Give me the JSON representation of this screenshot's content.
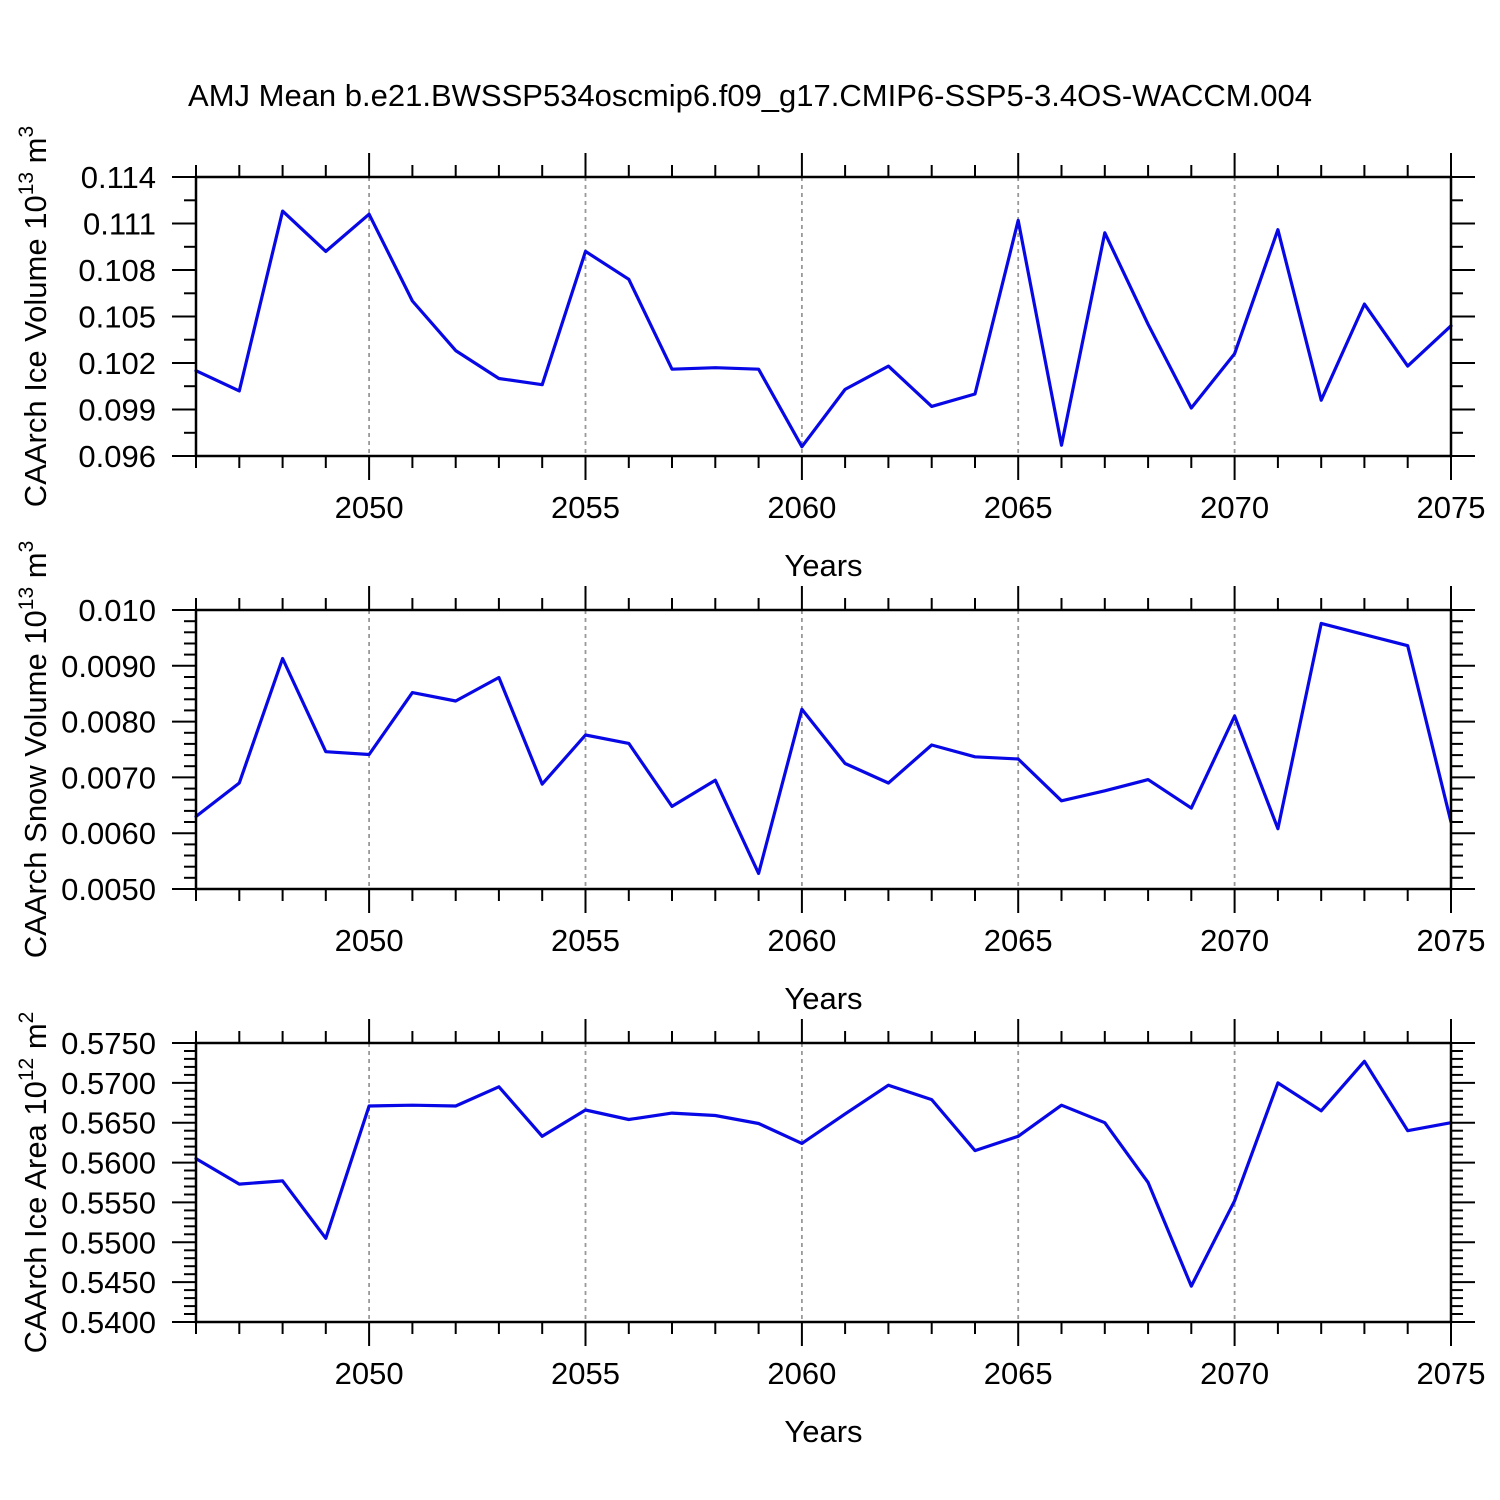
{
  "page": {
    "title": "AMJ Mean b.e21.BWSSP534oscmip6.f09_g17.CMIP6-SSP5-3.4OS-WACCM.004",
    "background": "#ffffff"
  },
  "style": {
    "line_color": "#0808e6",
    "frame_color": "#000000",
    "grid_color": "#999999",
    "text_color": "#000000"
  },
  "x_axis": {
    "title": "Years",
    "min": 2046,
    "max": 2075,
    "major_ticks": [
      2050,
      2055,
      2060,
      2065,
      2070,
      2075
    ],
    "minor_step": 1,
    "gridlines": "dashed at major ticks"
  },
  "chart_data": [
    {
      "type": "line",
      "ylabel": "CAArch Ice Volume 10¹³ m³",
      "ylabel_parts": [
        {
          "t": "CAArch Ice Volume 10"
        },
        {
          "t": "13",
          "sup": true
        },
        {
          "t": " m"
        },
        {
          "t": "3",
          "sup": true
        }
      ],
      "xlabel": "Years",
      "ylim": [
        0.096,
        0.114
      ],
      "ytick_values": [
        0.096,
        0.099,
        0.102,
        0.105,
        0.108,
        0.111,
        0.114
      ],
      "ytick_labels": [
        "0.096",
        "0.099",
        "0.102",
        "0.105",
        "0.108",
        "0.111",
        "0.114"
      ],
      "yminor_step": 0.0015,
      "x": [
        2046,
        2047,
        2048,
        2049,
        2050,
        2051,
        2052,
        2053,
        2054,
        2055,
        2056,
        2057,
        2058,
        2059,
        2060,
        2061,
        2062,
        2063,
        2064,
        2065,
        2066,
        2067,
        2068,
        2069,
        2070,
        2071,
        2072,
        2073,
        2074,
        2075
      ],
      "values": [
        0.1015,
        0.1002,
        0.1118,
        0.1092,
        0.1116,
        0.106,
        0.1028,
        0.101,
        0.1006,
        0.1092,
        0.1074,
        0.1016,
        0.1017,
        0.1016,
        0.0966,
        0.1003,
        0.1018,
        0.0992,
        0.1,
        0.1112,
        0.0967,
        0.1104,
        0.1045,
        0.0991,
        0.1026,
        0.1106,
        0.0996,
        0.1058,
        0.1018,
        0.1044
      ]
    },
    {
      "type": "line",
      "ylabel": "CAArch Snow Volume 10¹³ m³",
      "ylabel_parts": [
        {
          "t": "CAArch Snow Volume 10"
        },
        {
          "t": "13",
          "sup": true
        },
        {
          "t": " m"
        },
        {
          "t": "3",
          "sup": true
        }
      ],
      "xlabel": "Years",
      "ylim": [
        0.005,
        0.01
      ],
      "ytick_values": [
        0.005,
        0.006,
        0.007,
        0.008,
        0.009,
        0.01
      ],
      "ytick_labels": [
        "0.0050",
        "0.0060",
        "0.0070",
        "0.0080",
        "0.0090",
        "0.010"
      ],
      "yminor_step": 0.0002,
      "x": [
        2046,
        2047,
        2048,
        2049,
        2050,
        2051,
        2052,
        2053,
        2054,
        2055,
        2056,
        2057,
        2058,
        2059,
        2060,
        2061,
        2062,
        2063,
        2064,
        2065,
        2066,
        2067,
        2068,
        2069,
        2070,
        2071,
        2072,
        2073,
        2074,
        2075
      ],
      "values": [
        0.0063,
        0.0069,
        0.00913,
        0.00746,
        0.00741,
        0.00852,
        0.00837,
        0.00879,
        0.00688,
        0.00776,
        0.00761,
        0.00648,
        0.00695,
        0.00528,
        0.00822,
        0.00725,
        0.0069,
        0.00758,
        0.00737,
        0.00733,
        0.00658,
        0.00676,
        0.00696,
        0.00645,
        0.0081,
        0.00608,
        0.00976,
        0.00956,
        0.00936,
        0.0062
      ]
    },
    {
      "type": "line",
      "ylabel": "CAArch Ice Area 10¹² m²",
      "ylabel_parts": [
        {
          "t": "CAArch Ice Area 10"
        },
        {
          "t": "12",
          "sup": true
        },
        {
          "t": " m"
        },
        {
          "t": "2",
          "sup": true
        }
      ],
      "xlabel": "Years",
      "ylim": [
        0.54,
        0.575
      ],
      "ytick_values": [
        0.54,
        0.545,
        0.55,
        0.555,
        0.56,
        0.565,
        0.57,
        0.575
      ],
      "ytick_labels": [
        "0.5400",
        "0.5450",
        "0.5500",
        "0.5550",
        "0.5600",
        "0.5650",
        "0.5700",
        "0.5750"
      ],
      "yminor_step": 0.001,
      "x": [
        2046,
        2047,
        2048,
        2049,
        2050,
        2051,
        2052,
        2053,
        2054,
        2055,
        2056,
        2057,
        2058,
        2059,
        2060,
        2061,
        2062,
        2063,
        2064,
        2065,
        2066,
        2067,
        2068,
        2069,
        2070,
        2071,
        2072,
        2073,
        2074,
        2075
      ],
      "values": [
        0.5605,
        0.5573,
        0.5577,
        0.5505,
        0.5671,
        0.5672,
        0.5671,
        0.5695,
        0.5633,
        0.5666,
        0.5654,
        0.5662,
        0.5659,
        0.5649,
        0.5624,
        0.5661,
        0.5697,
        0.5679,
        0.5615,
        0.5633,
        0.5672,
        0.565,
        0.5575,
        0.5445,
        0.5552,
        0.57,
        0.5665,
        0.5727,
        0.564,
        0.565
      ]
    }
  ]
}
